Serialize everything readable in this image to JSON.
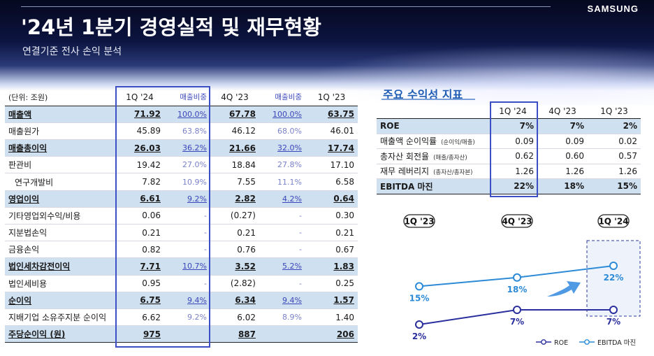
{
  "header": {
    "logo": "SAMSUNG",
    "title": "'24년 1분기 경영실적 및 재무현황",
    "subtitle": "연결기준 전사 손익 분석"
  },
  "table": {
    "unit": "(단위: 조원)",
    "columns": [
      "1Q '24",
      "매출비중",
      "4Q '23",
      "매출비중",
      "1Q '23"
    ],
    "rows": [
      {
        "label": "매출액",
        "c1": "71.92",
        "r1": "100.0%",
        "c2": "67.78",
        "r2": "100.0%",
        "c3": "63.75",
        "bold": true
      },
      {
        "label": "매출원가",
        "c1": "45.89",
        "r1": "63.8%",
        "c2": "46.12",
        "r2": "68.0%",
        "c3": "46.01"
      },
      {
        "label": "매출총이익",
        "c1": "26.03",
        "r1": "36.2%",
        "c2": "21.66",
        "r2": "32.0%",
        "c3": "17.74",
        "bold": true
      },
      {
        "label": "판관비",
        "c1": "19.42",
        "r1": "27.0%",
        "c2": "18.84",
        "r2": "27.8%",
        "c3": "17.10"
      },
      {
        "label": "연구개발비",
        "c1": "7.82",
        "r1": "10.9%",
        "c2": "7.55",
        "r2": "11.1%",
        "c3": "6.58",
        "indent": true
      },
      {
        "label": "영업이익",
        "c1": "6.61",
        "r1": "9.2%",
        "c2": "2.82",
        "r2": "4.2%",
        "c3": "0.64",
        "bold": true
      },
      {
        "label": "기타영업외수익/비용",
        "c1": "0.06",
        "r1": "-",
        "c2": "(0.27)",
        "r2": "-",
        "c3": "0.30"
      },
      {
        "label": "지분법손익",
        "c1": "0.21",
        "r1": "-",
        "c2": "0.21",
        "r2": "-",
        "c3": "0.21"
      },
      {
        "label": "금융손익",
        "c1": "0.82",
        "r1": "-",
        "c2": "0.76",
        "r2": "-",
        "c3": "0.67"
      },
      {
        "label": "법인세차감전이익",
        "c1": "7.71",
        "r1": "10.7%",
        "c2": "3.52",
        "r2": "5.2%",
        "c3": "1.83",
        "bold": true
      },
      {
        "label": "법인세비용",
        "c1": "0.95",
        "r1": "-",
        "c2": "(2.82)",
        "r2": "-",
        "c3": "0.25"
      },
      {
        "label": "순이익",
        "c1": "6.75",
        "r1": "9.4%",
        "c2": "6.34",
        "r2": "9.4%",
        "c3": "1.57",
        "bold": true
      },
      {
        "label": "지배기업 소유주지분 순이익",
        "c1": "6.62",
        "r1": "9.2%",
        "c2": "6.02",
        "r2": "8.9%",
        "c3": "1.40"
      },
      {
        "label": "주당순이익 (원)",
        "c1": "975",
        "r1": "",
        "c2": "887",
        "r2": "",
        "c3": "206",
        "bold": true
      }
    ]
  },
  "kpi": {
    "title": "주요 수익성 지표",
    "columns": [
      "1Q '24",
      "4Q '23",
      "1Q '23"
    ],
    "rows": [
      {
        "label": "ROE",
        "note": "",
        "v1": "7%",
        "v2": "7%",
        "v3": "2%",
        "bold": true
      },
      {
        "label": "매출액 순이익률",
        "note": "(순이익/매출)",
        "v1": "0.09",
        "v2": "0.09",
        "v3": "0.02"
      },
      {
        "label": "총자산 회전율",
        "note": "(매출/총자산)",
        "v1": "0.62",
        "v2": "0.60",
        "v3": "0.57"
      },
      {
        "label": "재무 레버리지",
        "note": "(총자산/총자본)",
        "v1": "1.26",
        "v2": "1.26",
        "v3": "1.26"
      },
      {
        "label": "EBITDA 마진",
        "note": "",
        "v1": "22%",
        "v2": "18%",
        "v3": "15%",
        "bold": true
      }
    ]
  },
  "chart_data": {
    "type": "line",
    "categories": [
      "1Q '23",
      "4Q '23",
      "1Q '24"
    ],
    "series": [
      {
        "name": "ROE",
        "values": [
          2,
          7,
          7
        ],
        "labels": [
          "2%",
          "7%",
          "7%"
        ],
        "color": "#2a2f9e"
      },
      {
        "name": "EBITDA 마진",
        "values": [
          15,
          18,
          22
        ],
        "labels": [
          "15%",
          "18%",
          "22%"
        ],
        "color": "#2c8ad6"
      }
    ],
    "legend_position": "bottom-right",
    "highlight_category": "1Q '24"
  }
}
